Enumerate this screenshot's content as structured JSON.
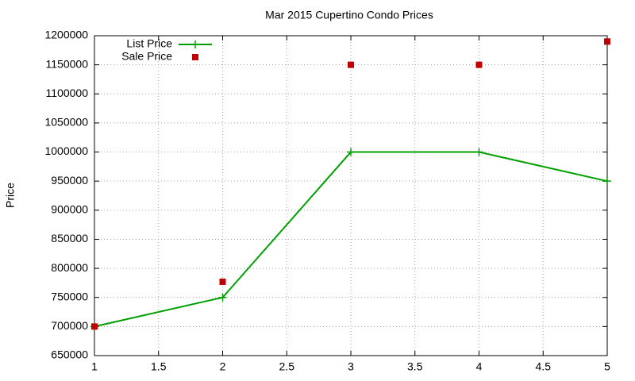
{
  "chart_data": {
    "type": "line",
    "title": "Mar 2015 Cupertino Condo Prices",
    "ylabel": "Price",
    "x": [
      1,
      2,
      3,
      4,
      5
    ],
    "series": [
      {
        "name": "List Price",
        "color": "#00a000",
        "style": "linespoints",
        "values": [
          700000,
          750000,
          1000000,
          1000000,
          950000
        ]
      },
      {
        "name": "Sale Price",
        "color": "#c00000",
        "style": "points",
        "values": [
          700000,
          777000,
          1150000,
          1150000,
          1190000
        ]
      }
    ],
    "xlim": [
      1,
      5
    ],
    "xticks": [
      1,
      1.5,
      2,
      2.5,
      3,
      3.5,
      4,
      4.5,
      5
    ],
    "ylim": [
      650000,
      1200000
    ],
    "yticks": [
      650000,
      700000,
      750000,
      800000,
      850000,
      900000,
      950000,
      1000000,
      1050000,
      1100000,
      1150000,
      1200000
    ],
    "grid": true,
    "legend": "top-left"
  }
}
